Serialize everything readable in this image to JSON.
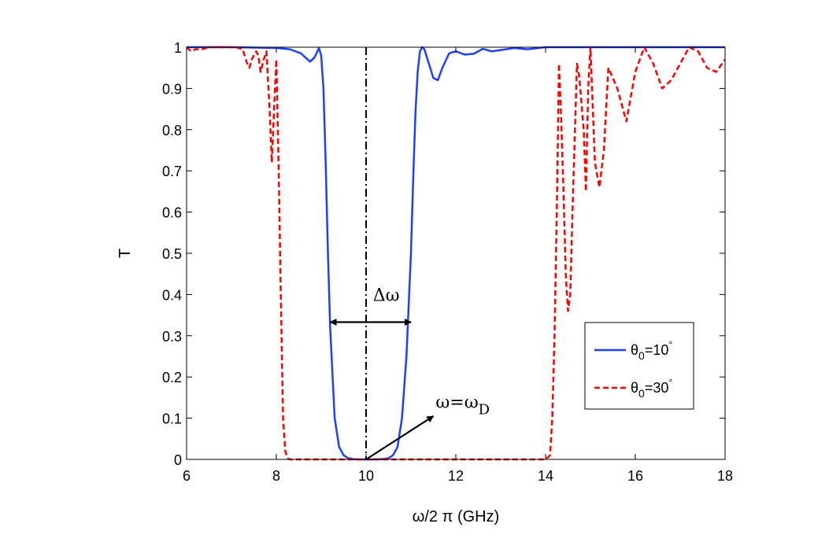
{
  "chart_data": {
    "type": "line",
    "title": "",
    "xlabel": "ω/2 π (GHz)",
    "ylabel": "T",
    "xlim": [
      6,
      18
    ],
    "ylim": [
      0,
      1
    ],
    "xticks": [
      "6",
      "8",
      "10",
      "12",
      "14",
      "16",
      "18"
    ],
    "yticks": [
      "0",
      "0.1",
      "0.2",
      "0.3",
      "0.4",
      "0.5",
      "0.6",
      "0.7",
      "0.8",
      "0.9",
      "1"
    ],
    "grid": false,
    "legend_position": "lower-right",
    "series": [
      {
        "name": "θ0=10°",
        "legend_base": "θ",
        "legend_sub": "0",
        "legend_rest": "=10",
        "legend_sup": "°",
        "color": "#1f3fff",
        "style": "solid",
        "x": [
          6.0,
          7.0,
          8.0,
          8.3,
          8.55,
          8.75,
          8.85,
          8.95,
          9.0,
          9.05,
          9.1,
          9.15,
          9.2,
          9.3,
          9.4,
          9.5,
          9.6,
          9.7,
          9.8,
          10.0,
          10.2,
          10.4,
          10.5,
          10.6,
          10.7,
          10.8,
          10.9,
          11.0,
          11.05,
          11.1,
          11.15,
          11.2,
          11.25,
          11.3,
          11.4,
          11.5,
          11.6,
          11.7,
          11.85,
          12.0,
          12.2,
          12.4,
          12.6,
          12.8,
          13.0,
          13.3,
          13.6,
          14.0,
          15.0,
          18.0
        ],
        "y": [
          1.0,
          1.0,
          0.998,
          0.995,
          0.985,
          0.965,
          0.975,
          0.998,
          0.98,
          0.9,
          0.72,
          0.5,
          0.32,
          0.1,
          0.03,
          0.01,
          0.003,
          0.001,
          0.0,
          0.0,
          0.0,
          0.001,
          0.003,
          0.01,
          0.03,
          0.1,
          0.25,
          0.5,
          0.68,
          0.84,
          0.94,
          0.99,
          1.0,
          0.995,
          0.96,
          0.925,
          0.92,
          0.95,
          0.985,
          0.99,
          0.982,
          0.984,
          0.996,
          0.99,
          0.993,
          0.998,
          0.995,
          1.0,
          1.0,
          1.0
        ]
      },
      {
        "name": "θ0=30°",
        "legend_base": "θ",
        "legend_sub": "0",
        "legend_rest": "=30",
        "legend_sup": "°",
        "color": "#ff0000",
        "style": "dashed",
        "x": [
          6.0,
          6.1,
          6.2,
          6.35,
          6.5,
          6.7,
          6.9,
          7.1,
          7.25,
          7.35,
          7.4,
          7.45,
          7.55,
          7.6,
          7.65,
          7.72,
          7.78,
          7.85,
          7.9,
          7.95,
          8.0,
          8.05,
          8.1,
          8.15,
          8.2,
          8.25,
          8.3,
          8.4,
          9.0,
          10.0,
          12.0,
          14.0,
          14.1,
          14.15,
          14.2,
          14.25,
          14.3,
          14.35,
          14.4,
          14.45,
          14.5,
          14.55,
          14.6,
          14.7,
          14.75,
          14.85,
          14.9,
          14.95,
          15.0,
          15.1,
          15.2,
          15.3,
          15.4,
          15.6,
          15.8,
          16.0,
          16.2,
          16.4,
          16.6,
          16.8,
          17.0,
          17.2,
          17.4,
          17.6,
          17.8,
          18.0
        ],
        "y": [
          1.0,
          0.99,
          0.995,
          0.995,
          1.0,
          1.0,
          1.0,
          1.0,
          0.995,
          0.96,
          0.95,
          0.97,
          0.99,
          0.98,
          0.94,
          0.97,
          0.99,
          0.85,
          0.72,
          0.85,
          0.97,
          0.72,
          0.4,
          0.1,
          0.02,
          0.003,
          0.0,
          0.0,
          0.0,
          0.0,
          0.0,
          0.0,
          0.01,
          0.1,
          0.3,
          0.6,
          0.96,
          0.82,
          0.65,
          0.45,
          0.36,
          0.4,
          0.6,
          0.96,
          0.93,
          0.8,
          0.65,
          0.9,
          1.0,
          0.72,
          0.66,
          0.75,
          0.95,
          0.9,
          0.82,
          0.94,
          1.0,
          0.96,
          0.9,
          0.92,
          0.96,
          1.0,
          0.99,
          0.95,
          0.94,
          0.97
        ]
      }
    ],
    "markers": [
      {
        "type": "vline",
        "x": 10.0,
        "style": "dash-dot",
        "color": "#000000"
      }
    ],
    "annotations": [
      {
        "text": "Δω",
        "type": "double-arrow",
        "x_start": 9.2,
        "x_end": 11.0,
        "y": 0.333,
        "label_x": 10.45,
        "label_y": 0.385
      },
      {
        "text_base": "ω=ω",
        "text_sub": "D",
        "type": "arrow",
        "x_start": 10.0,
        "y_start": 0.0,
        "x_end": 11.5,
        "y_end": 0.105,
        "label_x": 11.55,
        "label_y": 0.125
      }
    ]
  }
}
